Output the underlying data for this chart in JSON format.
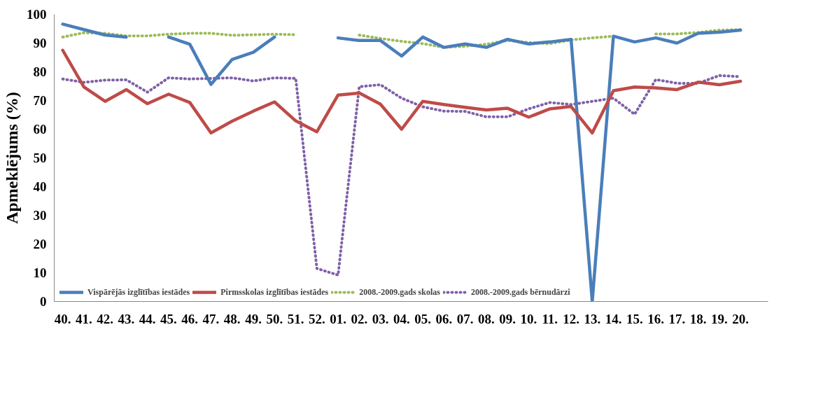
{
  "chart_data": {
    "type": "line",
    "ylabel": "Apmeklējums (%)",
    "categories": [
      "40.",
      "41.",
      "42.",
      "43.",
      "44.",
      "45.",
      "46.",
      "47.",
      "48.",
      "49.",
      "50.",
      "51.",
      "52.",
      "01.",
      "02.",
      "03.",
      "04.",
      "05.",
      "06.",
      "07.",
      "08.",
      "09.",
      "10.",
      "11.",
      "12.",
      "13.",
      "14.",
      "15.",
      "16.",
      "17.",
      "18.",
      "19.",
      "20."
    ],
    "ylim": [
      0,
      100
    ],
    "yticks": [
      0,
      10,
      20,
      30,
      40,
      50,
      60,
      70,
      80,
      90,
      100
    ],
    "grid": false,
    "legend": "bottom",
    "series": [
      {
        "name": "Vispārējās izglītības iestādes",
        "color": "#4a7ebb",
        "line_style": "solid",
        "values": [
          96.6,
          94.7,
          92.8,
          92.1,
          null,
          92.1,
          89.6,
          75.6,
          84.3,
          86.8,
          92.1,
          null,
          null,
          91.8,
          90.9,
          90.9,
          85.5,
          92.1,
          88.5,
          89.7,
          88.5,
          91.3,
          89.7,
          90.4,
          91.3,
          0,
          92.4,
          90.4,
          91.8,
          90.0,
          93.4,
          93.8,
          94.5
        ]
      },
      {
        "name": "Pirmsskolas izglītības iestādes",
        "color": "#be4b48",
        "line_style": "solid",
        "values": [
          87.5,
          74.7,
          69.7,
          73.8,
          68.9,
          72.2,
          69.3,
          58.7,
          62.8,
          66.3,
          69.5,
          62.9,
          59.1,
          71.9,
          72.6,
          68.7,
          60.0,
          69.7,
          68.6,
          67.6,
          66.7,
          67.3,
          64.2,
          67.1,
          67.9,
          58.7,
          73.4,
          74.7,
          74.4,
          73.8,
          76.4,
          75.5,
          76.7
        ]
      },
      {
        "name": "2008.-2009.gads skolas",
        "color": "#9bbb59",
        "line_style": "dotted",
        "values": [
          92.1,
          93.6,
          93.4,
          92.5,
          92.5,
          93.1,
          93.4,
          93.4,
          92.7,
          92.9,
          93.1,
          92.9,
          null,
          null,
          92.8,
          91.6,
          90.6,
          89.8,
          88.5,
          88.9,
          89.6,
          90.9,
          90.2,
          89.8,
          91.1,
          91.8,
          92.4,
          null,
          93.2,
          93.2,
          93.7,
          94.5,
          94.7
        ]
      },
      {
        "name": "2008.-2009.gads bērnudārzi",
        "color": "#7f60a8",
        "line_style": "dotted",
        "values": [
          77.5,
          76.3,
          77.1,
          77.2,
          72.9,
          77.9,
          77.5,
          77.7,
          77.9,
          76.8,
          77.9,
          77.7,
          11.5,
          9.2,
          74.8,
          75.5,
          70.8,
          67.8,
          66.3,
          66.2,
          64.3,
          64.3,
          67.1,
          69.3,
          68.6,
          69.7,
          70.8,
          65.2,
          77.3,
          76.0,
          76.0,
          78.7,
          78.3
        ]
      }
    ]
  }
}
